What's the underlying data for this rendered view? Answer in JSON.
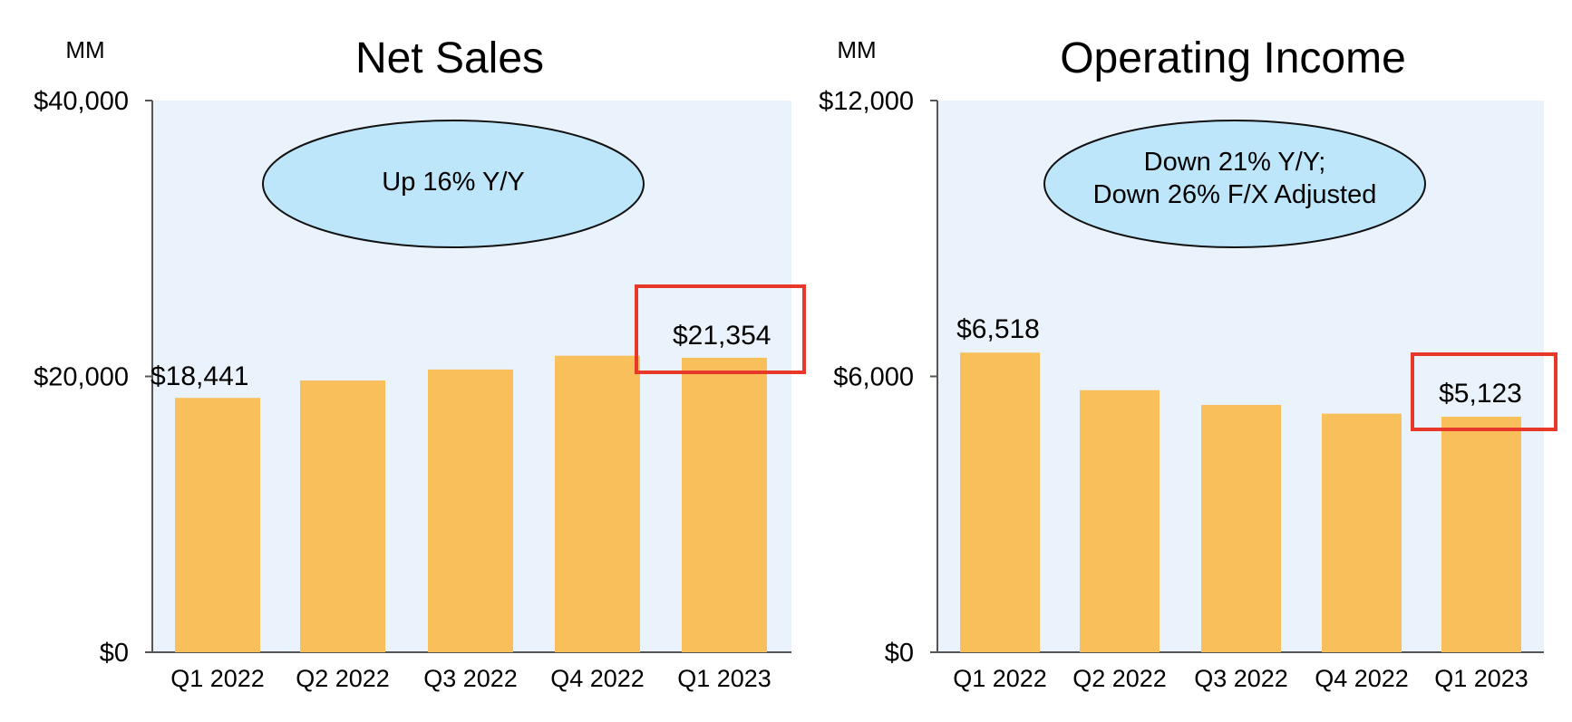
{
  "colors": {
    "bar": "#F8BF5A",
    "plot_bg": "#EAF2FC",
    "callout_fill": "#BEE6FA",
    "highlight": "#E8382A",
    "axis": "#555555"
  },
  "chart_data": [
    {
      "type": "bar",
      "unit": "MM",
      "title": "Net Sales",
      "categories": [
        "Q1 2022",
        "Q2 2022",
        "Q3 2022",
        "Q4 2022",
        "Q1 2023"
      ],
      "values": [
        18441,
        19700,
        20500,
        21500,
        21354
      ],
      "data_labels": [
        "$18,441",
        "",
        "",
        "",
        "$21,354"
      ],
      "ylim": [
        0,
        40000
      ],
      "yticks": [
        0,
        20000,
        40000
      ],
      "ytick_labels": [
        "$0",
        "$20,000",
        "$40,000"
      ],
      "callout": [
        "Up 16% Y/Y"
      ],
      "highlight": "Q1 2023",
      "grid": false,
      "legend": "none"
    },
    {
      "type": "bar",
      "unit": "MM",
      "title": "Operating Income",
      "categories": [
        "Q1 2022",
        "Q2 2022",
        "Q3 2022",
        "Q4 2022",
        "Q1 2023"
      ],
      "values": [
        6518,
        5700,
        5380,
        5190,
        5123
      ],
      "data_labels": [
        "$6,518",
        "",
        "",
        "",
        "$5,123"
      ],
      "ylim": [
        0,
        12000
      ],
      "yticks": [
        0,
        6000,
        12000
      ],
      "ytick_labels": [
        "$0",
        "$6,000",
        "$12,000"
      ],
      "callout": [
        "Down 21% Y/Y;",
        "Down 26% F/X Adjusted"
      ],
      "highlight": "Q1 2023",
      "grid": false,
      "legend": "none"
    }
  ]
}
